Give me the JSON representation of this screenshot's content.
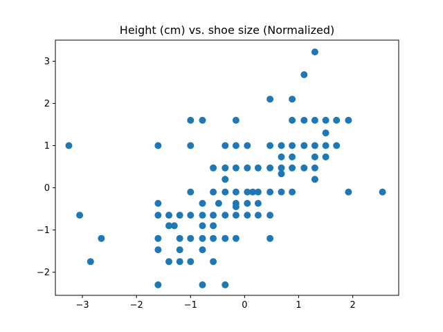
{
  "chart_data": {
    "type": "scatter",
    "title": "Height (cm) vs. shoe size (Normalized)",
    "xlabel": "",
    "ylabel": "",
    "xlim": [
      -3.5,
      2.85
    ],
    "ylim": [
      -2.55,
      3.5
    ],
    "x_ticks": [
      -3,
      -2,
      -1,
      0,
      1,
      2
    ],
    "y_ticks": [
      -2,
      -1,
      0,
      1,
      2,
      3
    ],
    "x_tick_labels": [
      "−3",
      "−2",
      "−1",
      "0",
      "1",
      "2"
    ],
    "y_tick_labels": [
      "−2",
      "−1",
      "0",
      "1",
      "2",
      "3"
    ],
    "grid": false,
    "marker_color": "#1f77b4",
    "points": [
      {
        "x": -3.25,
        "y": 1.0
      },
      {
        "x": -3.05,
        "y": -0.65
      },
      {
        "x": -2.85,
        "y": -1.75
      },
      {
        "x": -2.65,
        "y": -1.2
      },
      {
        "x": -1.6,
        "y": 1.0
      },
      {
        "x": -1.6,
        "y": -0.37
      },
      {
        "x": -1.6,
        "y": -0.65
      },
      {
        "x": -1.6,
        "y": -1.2
      },
      {
        "x": -1.6,
        "y": -1.47
      },
      {
        "x": -1.6,
        "y": -2.3
      },
      {
        "x": -1.4,
        "y": -0.65
      },
      {
        "x": -1.4,
        "y": -0.9
      },
      {
        "x": -1.4,
        "y": -1.75
      },
      {
        "x": -1.3,
        "y": -0.9
      },
      {
        "x": -1.2,
        "y": -0.65
      },
      {
        "x": -1.2,
        "y": -1.2
      },
      {
        "x": -1.2,
        "y": -1.47
      },
      {
        "x": -1.2,
        "y": -1.75
      },
      {
        "x": -1.0,
        "y": 1.6
      },
      {
        "x": -1.0,
        "y": 1.0
      },
      {
        "x": -1.0,
        "y": -0.1
      },
      {
        "x": -1.0,
        "y": -0.65
      },
      {
        "x": -1.0,
        "y": -1.2
      },
      {
        "x": -1.0,
        "y": -1.75
      },
      {
        "x": -0.78,
        "y": 1.6
      },
      {
        "x": -0.78,
        "y": -0.37
      },
      {
        "x": -0.78,
        "y": -0.65
      },
      {
        "x": -0.78,
        "y": -0.9
      },
      {
        "x": -0.78,
        "y": -1.2
      },
      {
        "x": -0.78,
        "y": -1.47
      },
      {
        "x": -0.78,
        "y": -2.3
      },
      {
        "x": -0.58,
        "y": 0.47
      },
      {
        "x": -0.58,
        "y": -0.1
      },
      {
        "x": -0.58,
        "y": -0.65
      },
      {
        "x": -0.58,
        "y": -0.9
      },
      {
        "x": -0.58,
        "y": -1.2
      },
      {
        "x": -0.58,
        "y": -1.75
      },
      {
        "x": -0.48,
        "y": -0.37
      },
      {
        "x": -0.36,
        "y": 1.0
      },
      {
        "x": -0.36,
        "y": 0.47
      },
      {
        "x": -0.36,
        "y": 0.2
      },
      {
        "x": -0.36,
        "y": -0.1
      },
      {
        "x": -0.36,
        "y": -0.65
      },
      {
        "x": -0.36,
        "y": -1.2
      },
      {
        "x": -0.36,
        "y": -2.3
      },
      {
        "x": -0.16,
        "y": 1.6
      },
      {
        "x": -0.16,
        "y": 1.0
      },
      {
        "x": -0.16,
        "y": 0.47
      },
      {
        "x": -0.16,
        "y": -0.1
      },
      {
        "x": -0.16,
        "y": -0.37
      },
      {
        "x": -0.16,
        "y": -0.45
      },
      {
        "x": -0.16,
        "y": -0.65
      },
      {
        "x": -0.16,
        "y": -1.2
      },
      {
        "x": 0.05,
        "y": 1.0
      },
      {
        "x": 0.05,
        "y": 0.47
      },
      {
        "x": 0.05,
        "y": -0.1
      },
      {
        "x": 0.05,
        "y": -0.37
      },
      {
        "x": 0.05,
        "y": -0.65
      },
      {
        "x": 0.15,
        "y": -0.1
      },
      {
        "x": 0.25,
        "y": 0.47
      },
      {
        "x": 0.25,
        "y": -0.1
      },
      {
        "x": 0.25,
        "y": -0.37
      },
      {
        "x": 0.25,
        "y": -0.65
      },
      {
        "x": 0.47,
        "y": 2.1
      },
      {
        "x": 0.47,
        "y": 1.0
      },
      {
        "x": 0.47,
        "y": 0.47
      },
      {
        "x": 0.47,
        "y": -0.1
      },
      {
        "x": 0.47,
        "y": -0.65
      },
      {
        "x": 0.47,
        "y": -1.2
      },
      {
        "x": 0.68,
        "y": 1.0
      },
      {
        "x": 0.68,
        "y": 0.73
      },
      {
        "x": 0.68,
        "y": 0.47
      },
      {
        "x": 0.68,
        "y": 0.33
      },
      {
        "x": 0.68,
        "y": -0.1
      },
      {
        "x": 0.88,
        "y": 2.1
      },
      {
        "x": 0.88,
        "y": 1.6
      },
      {
        "x": 0.88,
        "y": 1.0
      },
      {
        "x": 0.88,
        "y": 0.73
      },
      {
        "x": 0.88,
        "y": 0.47
      },
      {
        "x": 0.88,
        "y": -0.1
      },
      {
        "x": 1.1,
        "y": 2.68
      },
      {
        "x": 1.1,
        "y": 1.6
      },
      {
        "x": 1.1,
        "y": 1.0
      },
      {
        "x": 1.1,
        "y": 0.47
      },
      {
        "x": 1.3,
        "y": 3.22
      },
      {
        "x": 1.3,
        "y": 1.6
      },
      {
        "x": 1.3,
        "y": 1.0
      },
      {
        "x": 1.3,
        "y": 0.73
      },
      {
        "x": 1.3,
        "y": 0.47
      },
      {
        "x": 1.3,
        "y": 0.2
      },
      {
        "x": 1.5,
        "y": 1.6
      },
      {
        "x": 1.5,
        "y": 1.3
      },
      {
        "x": 1.5,
        "y": 1.0
      },
      {
        "x": 1.5,
        "y": 0.73
      },
      {
        "x": 1.7,
        "y": 1.6
      },
      {
        "x": 1.7,
        "y": 1.0
      },
      {
        "x": 1.92,
        "y": 1.6
      },
      {
        "x": 1.92,
        "y": -0.1
      },
      {
        "x": 2.55,
        "y": -0.1
      }
    ]
  }
}
